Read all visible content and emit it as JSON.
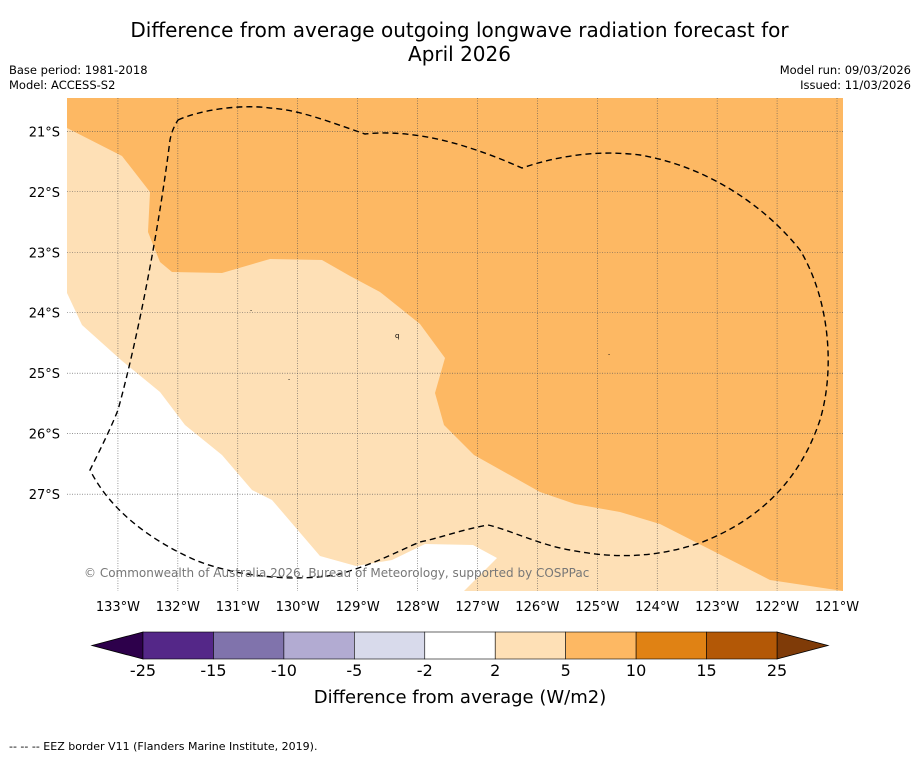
{
  "title_line1": "Difference from average outgoing longwave radiation forecast for",
  "title_line2": "April 2026",
  "meta": {
    "base_period": "Base period: 1981-2018",
    "model": "Model: ACCESS-S2",
    "model_run": "Model run: 09/03/2026",
    "issued": "Issued: 11/03/2026"
  },
  "copyright": "© Commonwealth of Australia 2026, Bureau of Meteorology, supported by COSPPac",
  "footer": "-- -- -- EEZ border V11 (Flanders Marine Institute, 2019).",
  "map": {
    "lon_range": [
      -133.85,
      -120.9
    ],
    "lat_range": [
      -28.6,
      -20.45
    ],
    "lat_ticks": [
      {
        "value": -21,
        "label": "21°S"
      },
      {
        "value": -22,
        "label": "22°S"
      },
      {
        "value": -23,
        "label": "23°S"
      },
      {
        "value": -24,
        "label": "24°S"
      },
      {
        "value": -25,
        "label": "25°S"
      },
      {
        "value": -26,
        "label": "26°S"
      },
      {
        "value": -27,
        "label": "27°S"
      }
    ],
    "lon_ticks": [
      {
        "value": -133,
        "label": "133°W"
      },
      {
        "value": -132,
        "label": "132°W"
      },
      {
        "value": -131,
        "label": "131°W"
      },
      {
        "value": -130,
        "label": "130°W"
      },
      {
        "value": -129,
        "label": "129°W"
      },
      {
        "value": -128,
        "label": "128°W"
      },
      {
        "value": -127,
        "label": "127°W"
      },
      {
        "value": -126,
        "label": "126°W"
      },
      {
        "value": -125,
        "label": "125°W"
      },
      {
        "value": -124,
        "label": "124°W"
      },
      {
        "value": -123,
        "label": "123°W"
      },
      {
        "value": -122,
        "label": "122°W"
      },
      {
        "value": -121,
        "label": "121°W"
      }
    ]
  },
  "colorbar": {
    "label": "Difference from average (W/m2)",
    "ticks": [
      "-25",
      "-15",
      "-10",
      "-5",
      "-2",
      "2",
      "5",
      "10",
      "15",
      "25"
    ],
    "under_color": "#2d004b",
    "over_color": "#7f3b08",
    "colors": [
      "#542788",
      "#8073ac",
      "#b2abd2",
      "#d8daeb",
      "#ffffff",
      "#fee0b6",
      "#fdb863",
      "#e08214",
      "#b35806"
    ]
  },
  "colors": {
    "band_5_10": "#fdb863",
    "band_2_5": "#fee0b6",
    "band_neutral": "#ffffff"
  }
}
